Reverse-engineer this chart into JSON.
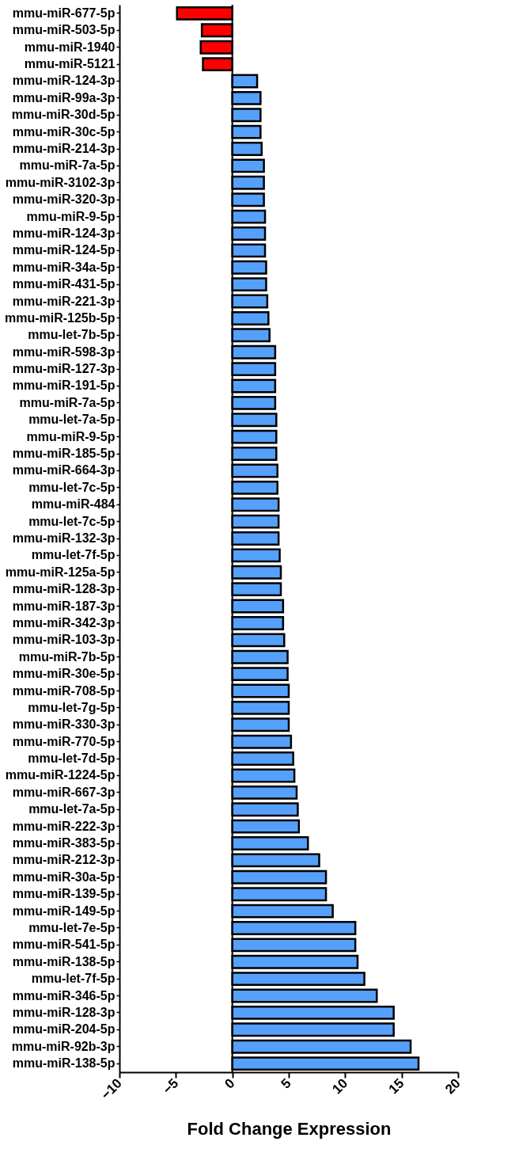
{
  "chart_data": {
    "type": "bar",
    "orientation": "horizontal",
    "xlabel": "Fold Change Expression",
    "categories": [
      "mmu-miR-677-5p",
      "mmu-miR-503-5p",
      "mmu-miR-1940",
      "mmu-miR-5121",
      "mmu-miR-124-3p",
      "mmu-miR-99a-3p",
      "mmu-miR-30d-5p",
      "mmu-miR-30c-5p",
      "mmu-miR-214-3p",
      "mmu-miR-7a-5p",
      "mmu-miR-3102-3p",
      "mmu-miR-320-3p",
      "mmu-miR-9-5p",
      "mmu-miR-124-3p",
      "mmu-miR-124-5p",
      "mmu-miR-34a-5p",
      "mmu-miR-431-5p",
      "mmu-miR-221-3p",
      "mmu-miR-125b-5p",
      "mmu-let-7b-5p",
      "mmu-miR-598-3p",
      "mmu-miR-127-3p",
      "mmu-miR-191-5p",
      "mmu-miR-7a-5p",
      "mmu-let-7a-5p",
      "mmu-miR-9-5p",
      "mmu-miR-185-5p",
      "mmu-miR-664-3p",
      "mmu-let-7c-5p",
      "mmu-miR-484",
      "mmu-let-7c-5p",
      "mmu-miR-132-3p",
      "mmu-let-7f-5p",
      "mmu-miR-125a-5p",
      "mmu-miR-128-3p",
      "mmu-miR-187-3p",
      "mmu-miR-342-3p",
      "mmu-miR-103-3p",
      "mmu-miR-7b-5p",
      "mmu-miR-30e-5p",
      "mmu-miR-708-5p",
      "mmu-let-7g-5p",
      "mmu-miR-330-3p",
      "mmu-miR-770-5p",
      "mmu-let-7d-5p",
      "mmu-miR-1224-5p",
      "mmu-miR-667-3p",
      "mmu-let-7a-5p",
      "mmu-miR-222-3p",
      "mmu-miR-383-5p",
      "mmu-miR-212-3p",
      "mmu-miR-30a-5p",
      "mmu-miR-139-5p",
      "mmu-miR-149-5p",
      "mmu-let-7e-5p",
      "mmu-miR-541-5p",
      "mmu-miR-138-5p",
      "mmu-let-7f-5p",
      "mmu-miR-346-5p",
      "mmu-miR-128-3p",
      "mmu-miR-204-5p",
      "mmu-miR-92b-3p",
      "mmu-miR-138-5p"
    ],
    "values": [
      -4.9,
      -2.7,
      -2.8,
      -2.6,
      2.2,
      2.5,
      2.5,
      2.5,
      2.6,
      2.8,
      2.8,
      2.8,
      2.9,
      2.9,
      2.9,
      3.0,
      3.0,
      3.1,
      3.2,
      3.3,
      3.8,
      3.8,
      3.8,
      3.8,
      3.9,
      3.9,
      3.9,
      4.0,
      4.0,
      4.1,
      4.1,
      4.1,
      4.2,
      4.3,
      4.3,
      4.5,
      4.5,
      4.6,
      4.9,
      4.9,
      5.0,
      5.0,
      5.0,
      5.2,
      5.4,
      5.5,
      5.7,
      5.8,
      5.9,
      6.7,
      7.7,
      8.3,
      8.3,
      8.9,
      10.9,
      10.9,
      11.1,
      11.7,
      12.8,
      14.3,
      14.3,
      15.8,
      16.5
    ],
    "colors": [
      "#ff0000",
      "#ff0000",
      "#ff0000",
      "#ff0000",
      "#55a0fb",
      "#55a0fb",
      "#55a0fb",
      "#55a0fb",
      "#55a0fb",
      "#55a0fb",
      "#55a0fb",
      "#55a0fb",
      "#55a0fb",
      "#55a0fb",
      "#55a0fb",
      "#55a0fb",
      "#55a0fb",
      "#55a0fb",
      "#55a0fb",
      "#55a0fb",
      "#55a0fb",
      "#55a0fb",
      "#55a0fb",
      "#55a0fb",
      "#55a0fb",
      "#55a0fb",
      "#55a0fb",
      "#55a0fb",
      "#55a0fb",
      "#55a0fb",
      "#55a0fb",
      "#55a0fb",
      "#55a0fb",
      "#55a0fb",
      "#55a0fb",
      "#55a0fb",
      "#55a0fb",
      "#55a0fb",
      "#55a0fb",
      "#55a0fb",
      "#55a0fb",
      "#55a0fb",
      "#55a0fb",
      "#55a0fb",
      "#55a0fb",
      "#55a0fb",
      "#55a0fb",
      "#55a0fb",
      "#55a0fb",
      "#55a0fb",
      "#55a0fb",
      "#55a0fb",
      "#55a0fb",
      "#55a0fb",
      "#55a0fb",
      "#55a0fb",
      "#55a0fb",
      "#55a0fb",
      "#55a0fb",
      "#55a0fb",
      "#55a0fb",
      "#55a0fb",
      "#55a0fb"
    ],
    "xlim": [
      -10,
      20
    ],
    "xticks": [
      -10,
      -5,
      0,
      5,
      10,
      15,
      20
    ],
    "ref_lines": [
      {
        "axis": "x",
        "value": 0
      }
    ],
    "grid": false
  }
}
